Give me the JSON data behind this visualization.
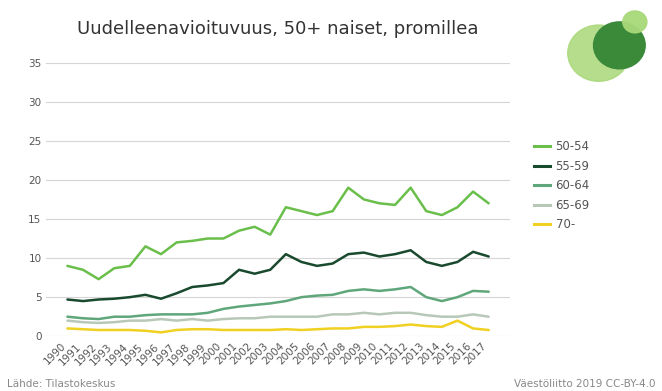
{
  "title": "Uudelleenavioituvuus, 50+ naiset, promillea",
  "years": [
    1990,
    1991,
    1992,
    1993,
    1994,
    1995,
    1996,
    1997,
    1998,
    1999,
    2000,
    2001,
    2002,
    2003,
    2004,
    2005,
    2006,
    2007,
    2008,
    2009,
    2010,
    2011,
    2012,
    2013,
    2014,
    2015,
    2016,
    2017
  ],
  "series": {
    "50-54": [
      9.0,
      8.5,
      7.3,
      8.7,
      9.0,
      11.5,
      10.5,
      12.0,
      12.2,
      12.5,
      12.5,
      13.5,
      14.0,
      13.0,
      16.5,
      16.0,
      15.5,
      16.0,
      19.0,
      17.5,
      17.0,
      16.8,
      19.0,
      16.0,
      15.5,
      16.5,
      18.5,
      17.0
    ],
    "55-59": [
      4.7,
      4.5,
      4.7,
      4.8,
      5.0,
      5.3,
      4.8,
      5.5,
      6.3,
      6.5,
      6.8,
      8.5,
      8.0,
      8.5,
      10.5,
      9.5,
      9.0,
      9.3,
      10.5,
      10.7,
      10.2,
      10.5,
      11.0,
      9.5,
      9.0,
      9.5,
      10.8,
      10.2
    ],
    "60-64": [
      2.5,
      2.3,
      2.2,
      2.5,
      2.5,
      2.7,
      2.8,
      2.8,
      2.8,
      3.0,
      3.5,
      3.8,
      4.0,
      4.2,
      4.5,
      5.0,
      5.2,
      5.3,
      5.8,
      6.0,
      5.8,
      6.0,
      6.3,
      5.0,
      4.5,
      5.0,
      5.8,
      5.7
    ],
    "65-69": [
      2.0,
      1.8,
      1.7,
      1.8,
      2.0,
      2.0,
      2.2,
      2.0,
      2.2,
      2.0,
      2.2,
      2.3,
      2.3,
      2.5,
      2.5,
      2.5,
      2.5,
      2.8,
      2.8,
      3.0,
      2.8,
      3.0,
      3.0,
      2.7,
      2.5,
      2.5,
      2.8,
      2.5
    ],
    "70-": [
      1.0,
      0.9,
      0.8,
      0.8,
      0.8,
      0.7,
      0.5,
      0.8,
      0.9,
      0.9,
      0.8,
      0.8,
      0.8,
      0.8,
      0.9,
      0.8,
      0.9,
      1.0,
      1.0,
      1.2,
      1.2,
      1.3,
      1.5,
      1.3,
      1.2,
      2.0,
      1.0,
      0.8
    ]
  },
  "colors": {
    "50-54": "#6abf4b",
    "55-59": "#1a4a2e",
    "60-64": "#5fa67a",
    "65-69": "#b8c8b8",
    "70-": "#f0d020"
  },
  "ylim": [
    0,
    35
  ],
  "yticks": [
    0,
    5,
    10,
    15,
    20,
    25,
    30,
    35
  ],
  "footer_left": "Lähde: Tilastokeskus",
  "footer_right": "Väestöliitto 2019 CC-BY-4.0",
  "background_color": "#ffffff",
  "grid_color": "#d5d5d5",
  "line_width": 1.8
}
